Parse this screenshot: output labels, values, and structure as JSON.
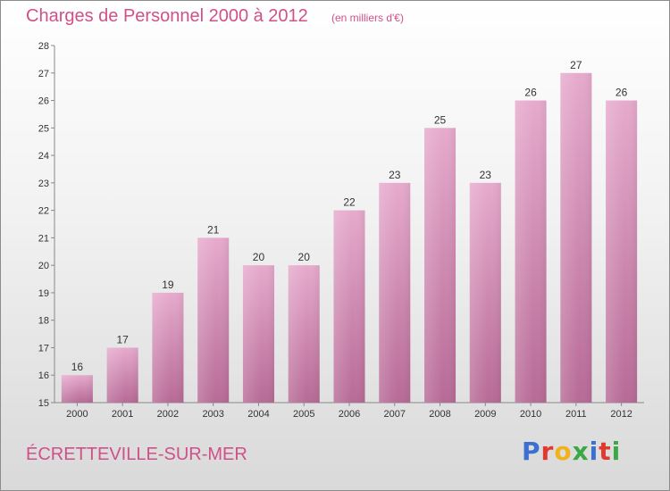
{
  "header": {
    "title": "Charges de Personnel 2000 à 2012",
    "subtitle": "(en milliers d'€)"
  },
  "footer": {
    "commune": "ÉCRETTEVILLE-SUR-MER",
    "logo": "Proxiti",
    "logo_colors": [
      "#3b6fd0",
      "#e0392d",
      "#f2b21b",
      "#3aa845",
      "#3b6fd0",
      "#e0392d",
      "#3aa845"
    ]
  },
  "colors": {
    "text_accent": "#d0508a",
    "bar_top": "#e6aacd",
    "bar_bottom": "#b76a96",
    "axis": "#888888"
  },
  "chart_data": {
    "type": "bar",
    "title": "Charges de Personnel 2000 à 2012",
    "subtitle": "(en milliers d'€)",
    "categories": [
      "2000",
      "2001",
      "2002",
      "2003",
      "2004",
      "2005",
      "2006",
      "2007",
      "2008",
      "2009",
      "2010",
      "2011",
      "2012"
    ],
    "values": [
      16,
      17,
      19,
      21,
      20,
      20,
      22,
      23,
      25,
      23,
      26,
      27,
      26
    ],
    "ylim": [
      15,
      28
    ],
    "yticks": [
      15,
      16,
      17,
      18,
      19,
      20,
      21,
      22,
      23,
      24,
      25,
      26,
      27,
      28
    ],
    "grid": false,
    "data_labels": true,
    "xlabel": "",
    "ylabel": ""
  }
}
